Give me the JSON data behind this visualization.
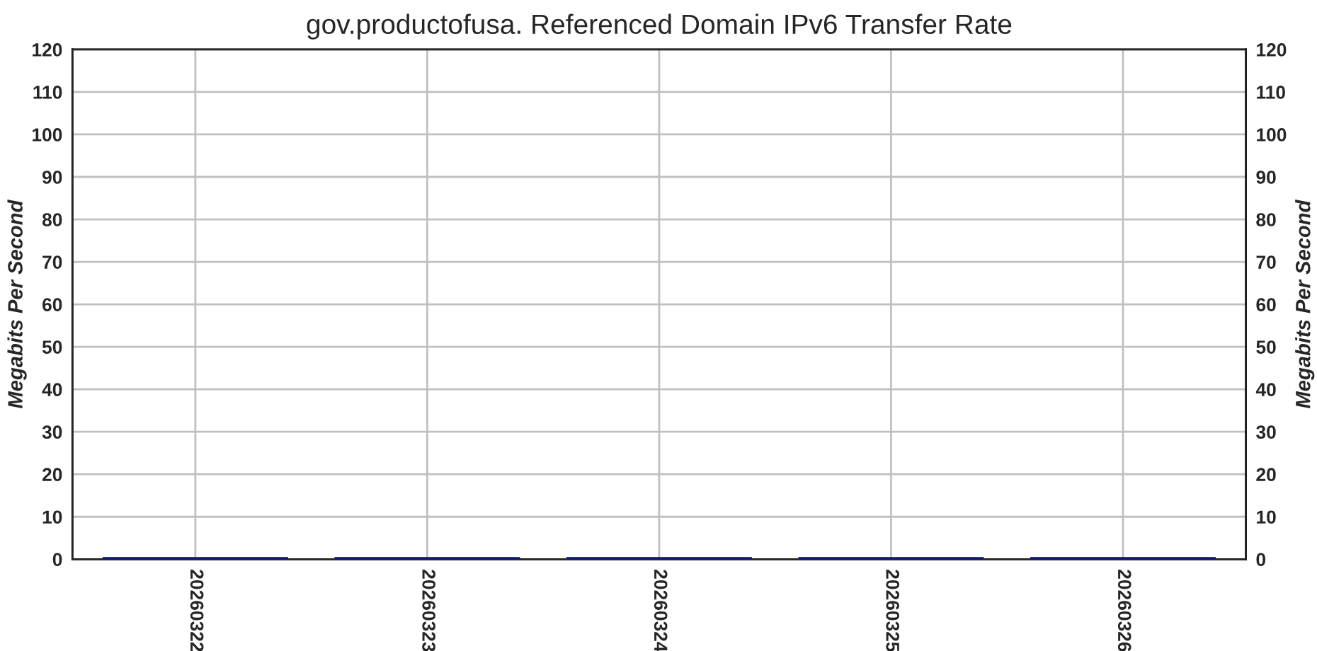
{
  "chart_data": {
    "type": "bar",
    "title": "gov.productofusa. Referenced Domain IPv6 Transfer Rate",
    "ylabel": "Megabits Per Second",
    "y2label": "Megabits Per Second",
    "categories": [
      "20260322",
      "20260323",
      "20260324",
      "20260325",
      "20260326"
    ],
    "values": [
      0.5,
      0.5,
      0.5,
      0.5,
      0.5
    ],
    "color": "#0000cc",
    "ylim": [
      0,
      120
    ],
    "yticks": [
      0,
      10,
      20,
      30,
      40,
      50,
      60,
      70,
      80,
      90,
      100,
      110,
      120
    ],
    "y2lim": [
      0,
      120
    ],
    "y2ticks": [
      0,
      10,
      20,
      30,
      40,
      50,
      60,
      70,
      80,
      90,
      100,
      110,
      120
    ],
    "grid": true
  }
}
